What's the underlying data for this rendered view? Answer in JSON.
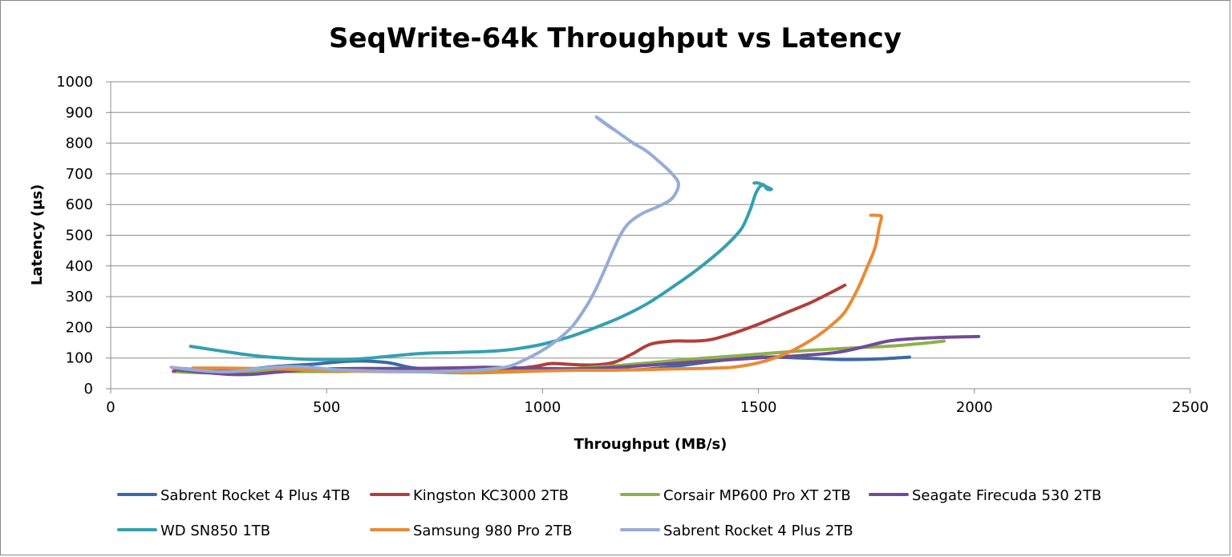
{
  "chart_data": {
    "type": "line",
    "title": "SeqWrite-64k Throughput vs Latency",
    "xlabel": "Throughput (MB/s)",
    "ylabel": "Latency (µs)",
    "xlim": [
      0,
      2500
    ],
    "ylim": [
      0,
      1000
    ],
    "x_ticks": [
      "0",
      "500",
      "1000",
      "1500",
      "2000",
      "2500"
    ],
    "y_ticks": [
      "0",
      "100",
      "200",
      "300",
      "400",
      "500",
      "600",
      "700",
      "800",
      "900",
      "1000"
    ],
    "grid": "horizontal",
    "legend_position": "bottom",
    "series": [
      {
        "name": "Sabrent Rocket 4 Plus 4TB",
        "color": "#3a6aa6",
        "points": [
          [
            145,
            68
          ],
          [
            200,
            62
          ],
          [
            280,
            58
          ],
          [
            380,
            72
          ],
          [
            470,
            80
          ],
          [
            560,
            90
          ],
          [
            640,
            85
          ],
          [
            700,
            68
          ],
          [
            780,
            62
          ],
          [
            860,
            60
          ],
          [
            940,
            60
          ],
          [
            1000,
            62
          ],
          [
            1080,
            65
          ],
          [
            1150,
            65
          ],
          [
            1220,
            62
          ],
          [
            1300,
            72
          ],
          [
            1400,
            90
          ],
          [
            1500,
            103
          ],
          [
            1600,
            100
          ],
          [
            1700,
            95
          ],
          [
            1780,
            97
          ],
          [
            1850,
            103
          ]
        ]
      },
      {
        "name": "Kingston KC3000 2TB",
        "color": "#b23e3a",
        "points": [
          [
            145,
            57
          ],
          [
            200,
            57
          ],
          [
            300,
            58
          ],
          [
            400,
            58
          ],
          [
            500,
            58
          ],
          [
            600,
            58
          ],
          [
            700,
            60
          ],
          [
            800,
            60
          ],
          [
            900,
            62
          ],
          [
            980,
            72
          ],
          [
            1020,
            82
          ],
          [
            1080,
            78
          ],
          [
            1130,
            78
          ],
          [
            1170,
            88
          ],
          [
            1210,
            115
          ],
          [
            1250,
            145
          ],
          [
            1300,
            155
          ],
          [
            1350,
            155
          ],
          [
            1390,
            160
          ],
          [
            1440,
            180
          ],
          [
            1500,
            210
          ],
          [
            1560,
            245
          ],
          [
            1620,
            280
          ],
          [
            1670,
            315
          ],
          [
            1700,
            337
          ]
        ]
      },
      {
        "name": "Corsair MP600 Pro XT 2TB",
        "color": "#8db14b",
        "points": [
          [
            155,
            55
          ],
          [
            220,
            52
          ],
          [
            280,
            55
          ],
          [
            340,
            56
          ],
          [
            420,
            56
          ],
          [
            520,
            56
          ],
          [
            620,
            58
          ],
          [
            720,
            55
          ],
          [
            800,
            52
          ],
          [
            860,
            52
          ],
          [
            940,
            55
          ],
          [
            1020,
            60
          ],
          [
            1100,
            68
          ],
          [
            1180,
            76
          ],
          [
            1260,
            86
          ],
          [
            1340,
            96
          ],
          [
            1430,
            105
          ],
          [
            1520,
            115
          ],
          [
            1620,
            125
          ],
          [
            1720,
            133
          ],
          [
            1820,
            140
          ],
          [
            1930,
            155
          ]
        ]
      },
      {
        "name": "Seagate Firecuda 530 2TB",
        "color": "#704c96",
        "points": [
          [
            150,
            62
          ],
          [
            200,
            55
          ],
          [
            260,
            48
          ],
          [
            300,
            46
          ],
          [
            340,
            48
          ],
          [
            400,
            56
          ],
          [
            460,
            62
          ],
          [
            520,
            65
          ],
          [
            600,
            66
          ],
          [
            700,
            66
          ],
          [
            800,
            68
          ],
          [
            870,
            70
          ],
          [
            940,
            68
          ],
          [
            1000,
            66
          ],
          [
            1060,
            65
          ],
          [
            1120,
            66
          ],
          [
            1200,
            72
          ],
          [
            1280,
            80
          ],
          [
            1360,
            88
          ],
          [
            1440,
            95
          ],
          [
            1520,
            102
          ],
          [
            1600,
            108
          ],
          [
            1680,
            118
          ],
          [
            1740,
            135
          ],
          [
            1800,
            155
          ],
          [
            1860,
            163
          ],
          [
            1940,
            168
          ],
          [
            2010,
            170
          ]
        ]
      },
      {
        "name": "WD SN850 1TB",
        "color": "#34a0ae",
        "points": [
          [
            185,
            138
          ],
          [
            260,
            122
          ],
          [
            330,
            108
          ],
          [
            400,
            100
          ],
          [
            470,
            95
          ],
          [
            560,
            96
          ],
          [
            640,
            105
          ],
          [
            720,
            115
          ],
          [
            800,
            118
          ],
          [
            880,
            122
          ],
          [
            940,
            130
          ],
          [
            1000,
            145
          ],
          [
            1060,
            168
          ],
          [
            1120,
            198
          ],
          [
            1180,
            232
          ],
          [
            1240,
            275
          ],
          [
            1300,
            330
          ],
          [
            1360,
            390
          ],
          [
            1420,
            460
          ],
          [
            1460,
            520
          ],
          [
            1480,
            580
          ],
          [
            1495,
            640
          ],
          [
            1510,
            665
          ],
          [
            1520,
            650
          ],
          [
            1530,
            650
          ],
          [
            1515,
            660
          ],
          [
            1500,
            670
          ],
          [
            1490,
            670
          ]
        ]
      },
      {
        "name": "Samsung 980 Pro 2TB",
        "color": "#ea8a35",
        "points": [
          [
            190,
            67
          ],
          [
            260,
            67
          ],
          [
            330,
            66
          ],
          [
            400,
            64
          ],
          [
            470,
            60
          ],
          [
            540,
            58
          ],
          [
            620,
            56
          ],
          [
            700,
            55
          ],
          [
            760,
            55
          ],
          [
            840,
            55
          ],
          [
            920,
            57
          ],
          [
            1000,
            58
          ],
          [
            1080,
            60
          ],
          [
            1160,
            60
          ],
          [
            1240,
            62
          ],
          [
            1320,
            65
          ],
          [
            1400,
            67
          ],
          [
            1440,
            70
          ],
          [
            1480,
            78
          ],
          [
            1520,
            92
          ],
          [
            1560,
            112
          ],
          [
            1600,
            140
          ],
          [
            1640,
            175
          ],
          [
            1670,
            208
          ],
          [
            1700,
            250
          ],
          [
            1730,
            325
          ],
          [
            1750,
            390
          ],
          [
            1770,
            460
          ],
          [
            1780,
            530
          ],
          [
            1785,
            560
          ],
          [
            1775,
            565
          ],
          [
            1760,
            565
          ]
        ]
      },
      {
        "name": "Sabrent Rocket 4 Plus 2TB",
        "color": "#96acd7",
        "points": [
          [
            140,
            70
          ],
          [
            200,
            60
          ],
          [
            260,
            55
          ],
          [
            300,
            58
          ],
          [
            360,
            68
          ],
          [
            410,
            72
          ],
          [
            460,
            70
          ],
          [
            520,
            62
          ],
          [
            600,
            58
          ],
          [
            680,
            56
          ],
          [
            740,
            56
          ],
          [
            800,
            58
          ],
          [
            860,
            62
          ],
          [
            920,
            72
          ],
          [
            960,
            95
          ],
          [
            1000,
            125
          ],
          [
            1040,
            165
          ],
          [
            1070,
            205
          ],
          [
            1100,
            265
          ],
          [
            1120,
            315
          ],
          [
            1140,
            375
          ],
          [
            1160,
            440
          ],
          [
            1180,
            500
          ],
          [
            1200,
            540
          ],
          [
            1230,
            570
          ],
          [
            1270,
            595
          ],
          [
            1300,
            620
          ],
          [
            1315,
            665
          ],
          [
            1300,
            700
          ],
          [
            1270,
            740
          ],
          [
            1240,
            775
          ],
          [
            1210,
            800
          ],
          [
            1180,
            830
          ],
          [
            1160,
            850
          ],
          [
            1140,
            870
          ],
          [
            1125,
            885
          ],
          [
            1150,
            858
          ],
          [
            1170,
            840
          ]
        ]
      }
    ]
  }
}
